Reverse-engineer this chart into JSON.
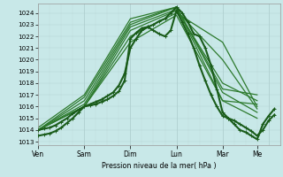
{
  "bg_color": "#c8e8e8",
  "grid_color_major": "#b0d0d0",
  "grid_color_minor": "#c0dada",
  "line_color_dark": "#1a5c1a",
  "line_color_med": "#2d7a2d",
  "ylabel_values": [
    1013,
    1014,
    1015,
    1016,
    1017,
    1018,
    1019,
    1020,
    1021,
    1022,
    1023,
    1024
  ],
  "ymin": 1012.7,
  "ymax": 1024.8,
  "xlabel": "Pression niveau de la mer( hPa )",
  "day_labels": [
    "Ven",
    "Sam",
    "Dim",
    "Lun",
    "Mar",
    "Me"
  ],
  "day_positions": [
    0,
    24,
    48,
    72,
    96,
    114
  ],
  "total_hours": 126,
  "series": [
    {
      "x": [
        0,
        3,
        6,
        9,
        12,
        15,
        18,
        21,
        24,
        27,
        30,
        33,
        36,
        39,
        42,
        45,
        48,
        51,
        54,
        57,
        60,
        63,
        66,
        69,
        72,
        75,
        78,
        81,
        84,
        87,
        90,
        93,
        96,
        99,
        102,
        105,
        108,
        111,
        114,
        117,
        120,
        123
      ],
      "y": [
        1014.0,
        1014.1,
        1014.2,
        1014.4,
        1014.7,
        1015.0,
        1015.4,
        1015.7,
        1016.0,
        1016.1,
        1016.2,
        1016.4,
        1016.6,
        1016.9,
        1017.3,
        1018.2,
        1021.8,
        1022.3,
        1022.7,
        1022.8,
        1022.5,
        1022.2,
        1022.0,
        1022.5,
        1024.2,
        1023.2,
        1022.2,
        1021.0,
        1019.5,
        1018.2,
        1017.0,
        1016.0,
        1015.2,
        1015.0,
        1014.8,
        1014.5,
        1014.2,
        1013.9,
        1013.5,
        1014.0,
        1014.8,
        1015.3
      ],
      "lw": 1.5,
      "marker": "+"
    },
    {
      "x": [
        0,
        24,
        48,
        72,
        96,
        114
      ],
      "y": [
        1014.0,
        1016.0,
        1021.5,
        1023.8,
        1016.5,
        1016.2
      ],
      "lw": 0.9
    },
    {
      "x": [
        0,
        24,
        48,
        72,
        96,
        114
      ],
      "y": [
        1014.0,
        1016.0,
        1022.0,
        1024.0,
        1021.5,
        1016.0
      ],
      "lw": 0.9
    },
    {
      "x": [
        0,
        24,
        48,
        72,
        96,
        114
      ],
      "y": [
        1014.0,
        1016.0,
        1022.5,
        1024.2,
        1020.0,
        1015.8
      ],
      "lw": 0.9
    },
    {
      "x": [
        0,
        24,
        48,
        72,
        96,
        114
      ],
      "y": [
        1014.0,
        1016.2,
        1022.8,
        1024.3,
        1018.0,
        1016.5
      ],
      "lw": 0.9
    },
    {
      "x": [
        0,
        24,
        48,
        72,
        96,
        114
      ],
      "y": [
        1014.0,
        1016.5,
        1023.0,
        1024.5,
        1017.2,
        1015.5
      ],
      "lw": 0.9
    },
    {
      "x": [
        0,
        24,
        48,
        72,
        96,
        114
      ],
      "y": [
        1014.0,
        1016.8,
        1023.2,
        1024.5,
        1016.5,
        1015.0
      ],
      "lw": 0.9
    },
    {
      "x": [
        0,
        24,
        48,
        72,
        96,
        114
      ],
      "y": [
        1014.2,
        1017.0,
        1023.5,
        1024.5,
        1017.5,
        1017.0
      ],
      "lw": 0.9
    },
    {
      "x": [
        0,
        3,
        6,
        9,
        12,
        15,
        18,
        21,
        24,
        27,
        30,
        33,
        36,
        39,
        42,
        45,
        48,
        51,
        54,
        57,
        60,
        63,
        66,
        69,
        72,
        75,
        78,
        81,
        84,
        87,
        90,
        93,
        96,
        99,
        102,
        105,
        108,
        111,
        114,
        117,
        120,
        123
      ],
      "y": [
        1013.5,
        1013.6,
        1013.7,
        1013.9,
        1014.2,
        1014.6,
        1015.0,
        1015.5,
        1016.0,
        1016.2,
        1016.4,
        1016.6,
        1016.9,
        1017.2,
        1017.8,
        1018.8,
        1021.0,
        1021.8,
        1022.5,
        1022.8,
        1023.0,
        1023.3,
        1023.5,
        1024.0,
        1024.5,
        1024.0,
        1023.2,
        1022.2,
        1022.0,
        1021.0,
        1019.5,
        1017.5,
        1015.5,
        1015.0,
        1014.5,
        1014.0,
        1013.8,
        1013.5,
        1013.2,
        1014.5,
        1015.2,
        1015.8
      ],
      "lw": 1.5,
      "marker": "+"
    }
  ]
}
